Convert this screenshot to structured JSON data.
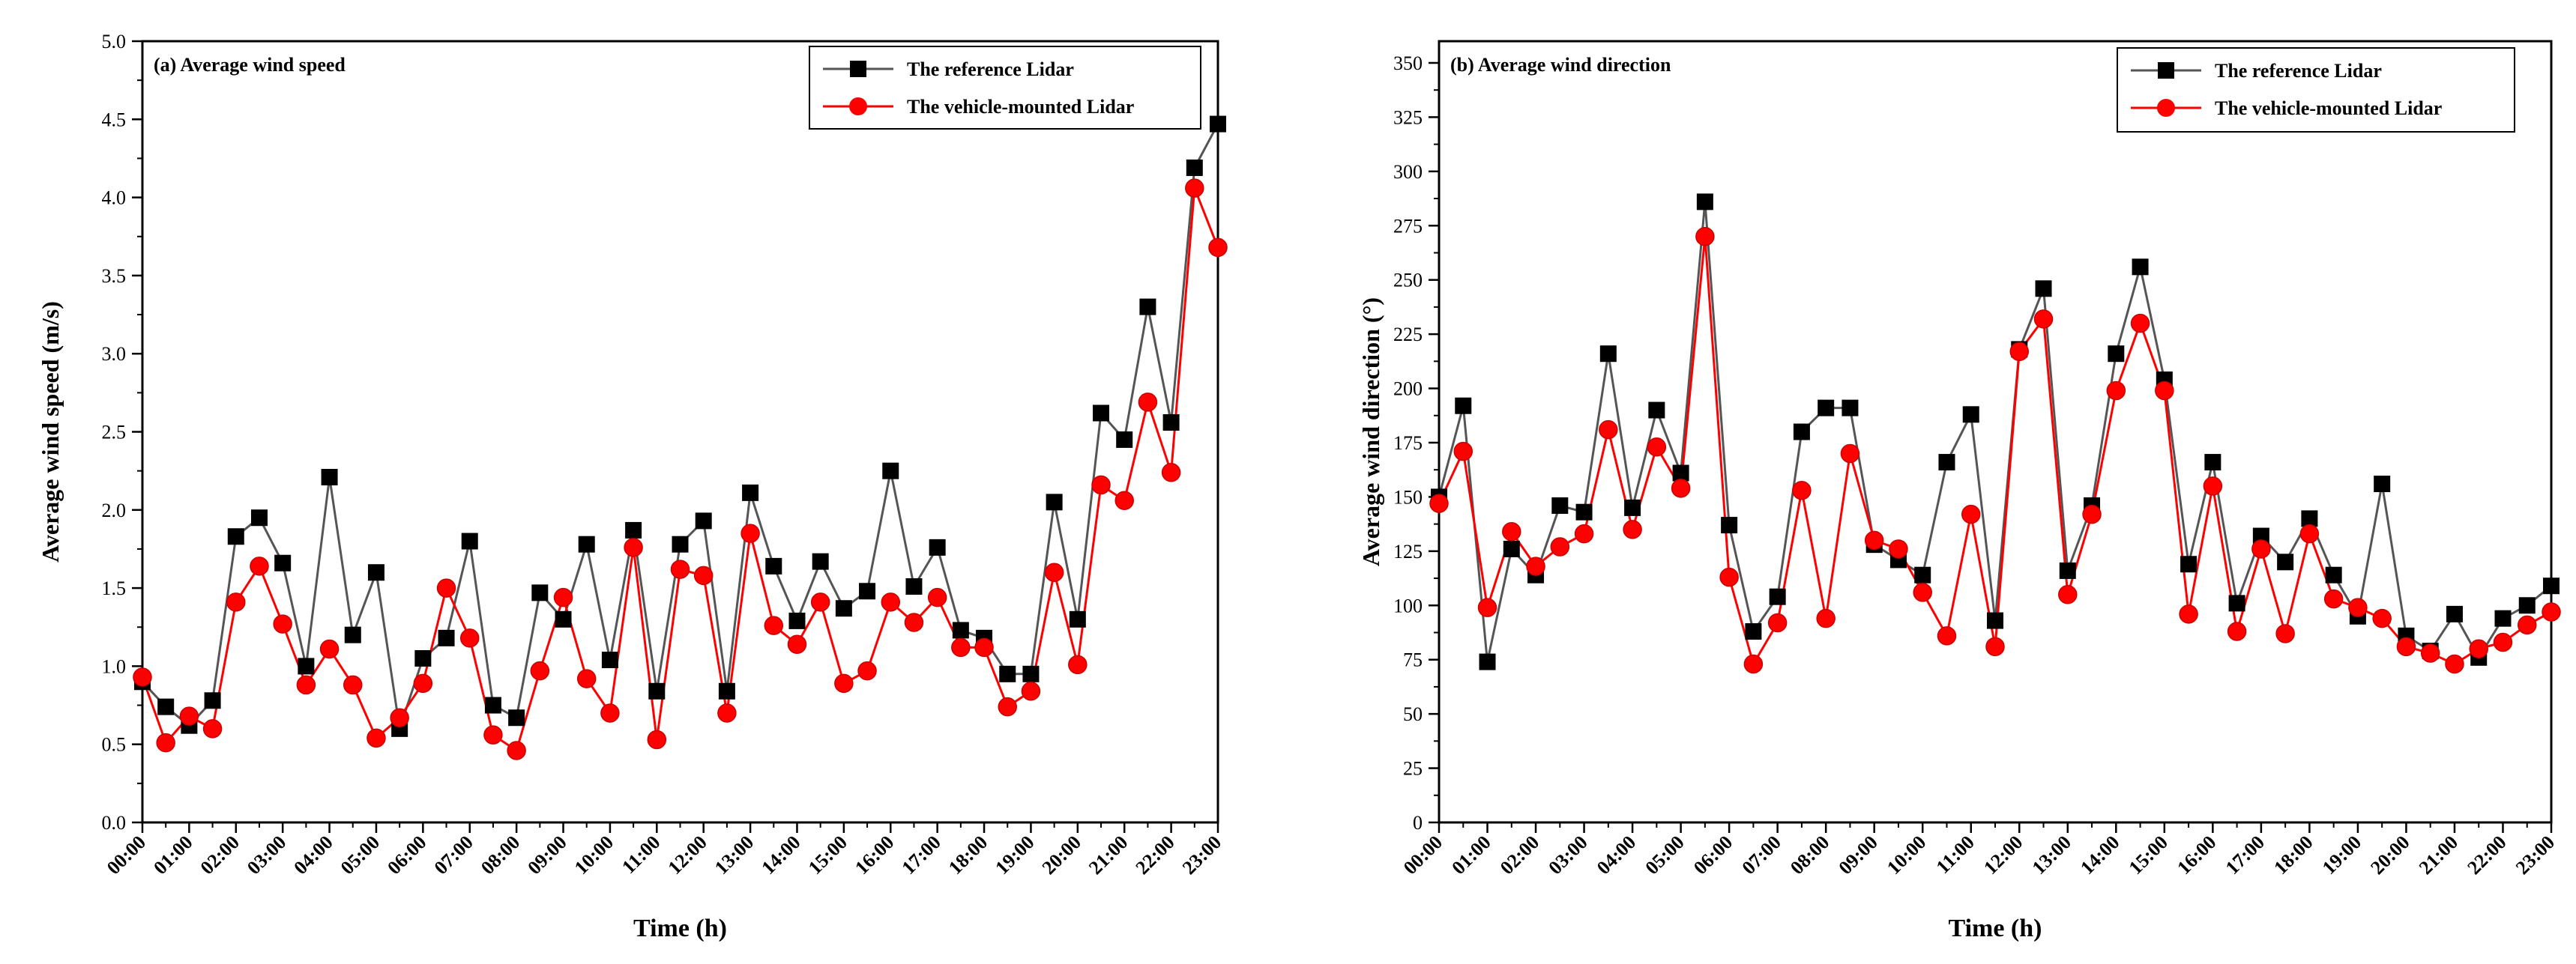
{
  "chart_data": [
    {
      "type": "line",
      "title": "(a) Average wind speed",
      "xlabel": "Time (h)",
      "ylabel": "Average wind speed (m/s)",
      "ylim": [
        0,
        5.0
      ],
      "yticks": [
        "0.0",
        "0.5",
        "1.0",
        "1.5",
        "2.0",
        "2.5",
        "3.0",
        "3.5",
        "4.0",
        "4.5",
        "5.0"
      ],
      "xlim": [
        0,
        23
      ],
      "x_tick_labels": [
        "00:00",
        "01:00",
        "02:00",
        "03:00",
        "04:00",
        "05:00",
        "06:00",
        "07:00",
        "08:00",
        "09:00",
        "10:00",
        "11:00",
        "12:00",
        "13:00",
        "14:00",
        "15:00",
        "16:00",
        "17:00",
        "18:00",
        "19:00",
        "20:00",
        "21:00",
        "22:00",
        "23:00"
      ],
      "legend_position": "top-right",
      "x": [
        0,
        0.5,
        1,
        1.5,
        2,
        2.5,
        3,
        3.5,
        4,
        4.5,
        5,
        5.5,
        6,
        6.5,
        7,
        7.5,
        8,
        8.5,
        9,
        9.5,
        10,
        10.5,
        11,
        11.5,
        12,
        12.5,
        13,
        13.5,
        14,
        14.5,
        15,
        15.5,
        16,
        16.5,
        17,
        17.5,
        18,
        18.5,
        19,
        19.5,
        20,
        20.5,
        21,
        21.5,
        22,
        22.5,
        23
      ],
      "series": [
        {
          "name": "The reference Lidar",
          "color": "#000000",
          "line_color": "#555555",
          "marker": "square",
          "values": [
            0.9,
            0.74,
            0.62,
            0.78,
            1.83,
            1.95,
            1.66,
            1.0,
            2.21,
            1.2,
            1.6,
            0.6,
            1.05,
            1.18,
            1.8,
            0.75,
            0.67,
            1.47,
            1.3,
            1.78,
            1.04,
            1.87,
            0.84,
            1.78,
            1.93,
            0.84,
            2.11,
            1.64,
            1.29,
            1.67,
            1.37,
            1.48,
            2.25,
            1.51,
            1.76,
            1.23,
            1.18,
            0.95,
            0.95,
            2.05,
            1.3,
            2.62,
            2.45,
            3.3,
            2.56,
            4.19,
            4.47
          ]
        },
        {
          "name": "The vehicle-mounted Lidar",
          "color": "#ff0000",
          "line_color": "#ff0000",
          "marker": "circle",
          "values": [
            0.93,
            0.51,
            0.68,
            0.6,
            1.41,
            1.64,
            1.27,
            0.88,
            1.11,
            0.88,
            0.54,
            0.67,
            0.89,
            1.5,
            1.18,
            0.56,
            0.46,
            0.97,
            1.44,
            0.92,
            0.7,
            1.76,
            0.53,
            1.62,
            1.58,
            0.7,
            1.85,
            1.26,
            1.14,
            1.41,
            0.89,
            0.97,
            1.41,
            1.28,
            1.44,
            1.12,
            1.12,
            0.74,
            0.84,
            1.6,
            1.01,
            2.16,
            2.06,
            2.69,
            2.24,
            4.06,
            3.68
          ]
        }
      ]
    },
    {
      "type": "line",
      "title": "(b) Average wind direction",
      "xlabel": "Time (h)",
      "ylabel": "Average wind direction (°)",
      "ylim": [
        0,
        360
      ],
      "yticks": [
        "0",
        "25",
        "50",
        "75",
        "100",
        "125",
        "150",
        "175",
        "200",
        "225",
        "250",
        "275",
        "300",
        "325",
        "350"
      ],
      "xlim": [
        0,
        23
      ],
      "x_tick_labels": [
        "00:00",
        "01:00",
        "02:00",
        "03:00",
        "04:00",
        "05:00",
        "06:00",
        "07:00",
        "08:00",
        "09:00",
        "10:00",
        "11:00",
        "12:00",
        "13:00",
        "14:00",
        "15:00",
        "16:00",
        "17:00",
        "18:00",
        "19:00",
        "20:00",
        "21:00",
        "22:00",
        "23:00"
      ],
      "legend_position": "top-right",
      "x": [
        0,
        0.5,
        1,
        1.5,
        2,
        2.5,
        3,
        3.5,
        4,
        4.5,
        5,
        5.5,
        6,
        6.5,
        7,
        7.5,
        8,
        8.5,
        9,
        9.5,
        10,
        10.5,
        11,
        11.5,
        12,
        12.5,
        13,
        13.5,
        14,
        14.5,
        15,
        15.5,
        16,
        16.5,
        17,
        17.5,
        18,
        18.5,
        19,
        19.5,
        20,
        20.5,
        21,
        21.5,
        22,
        22.5,
        23
      ],
      "series": [
        {
          "name": "The reference Lidar",
          "color": "#000000",
          "line_color": "#555555",
          "marker": "square",
          "values": [
            150,
            192,
            74,
            126,
            114,
            146,
            143,
            216,
            145,
            190,
            161,
            286,
            137,
            88,
            104,
            180,
            191,
            191,
            128,
            121,
            114,
            166,
            188,
            93,
            218,
            246,
            116,
            146,
            216,
            256,
            204,
            119,
            166,
            101,
            132,
            120,
            140,
            114,
            95,
            156,
            86,
            79,
            96,
            76,
            94,
            100,
            109
          ]
        },
        {
          "name": "The vehicle-mounted Lidar",
          "color": "#ff0000",
          "line_color": "#ff0000",
          "marker": "circle",
          "values": [
            147,
            171,
            99,
            134,
            118,
            127,
            133,
            181,
            135,
            173,
            154,
            270,
            113,
            73,
            92,
            153,
            94,
            170,
            130,
            126,
            106,
            86,
            142,
            81,
            217,
            232,
            105,
            142,
            199,
            230,
            199,
            96,
            155,
            88,
            126,
            87,
            133,
            103,
            99,
            94,
            81,
            78,
            73,
            80,
            83,
            91,
            97
          ]
        }
      ]
    }
  ]
}
